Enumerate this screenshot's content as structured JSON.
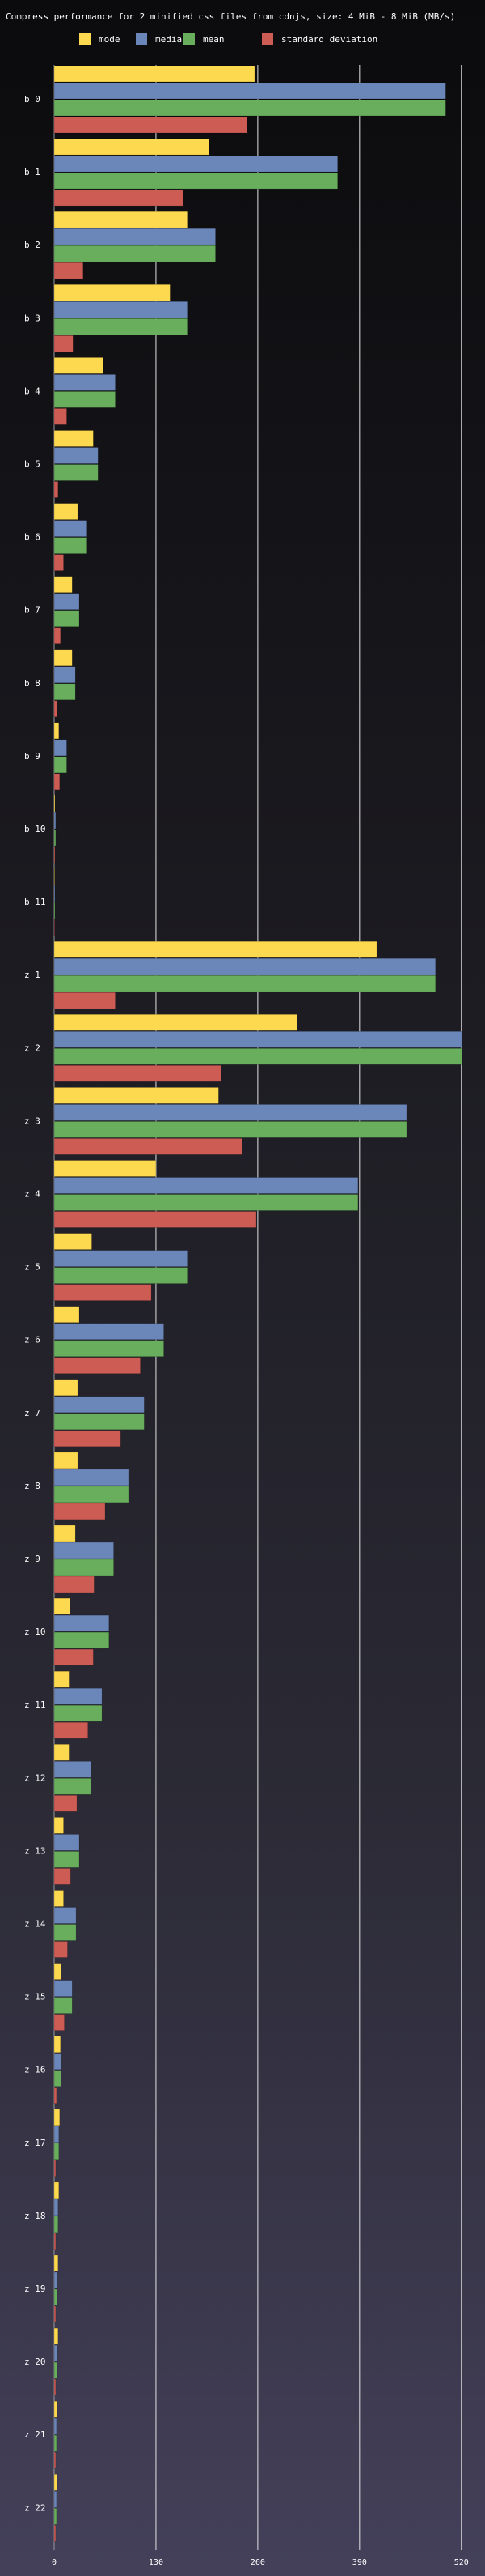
{
  "chart_data": {
    "type": "bar",
    "orientation": "horizontal",
    "title": "Compress performance for 2 minified css files from cdnjs, size: 4 MiB - 8 MiB (MB/s)",
    "xlabel": "",
    "ylabel": "",
    "xlim": [
      0,
      525
    ],
    "x_ticks": [
      "0",
      "130",
      "260",
      "390",
      "520"
    ],
    "grid": true,
    "legend_position": "top",
    "categories": [
      "b 0",
      "b 1",
      "b 2",
      "b 3",
      "b 4",
      "b 5",
      "b 6",
      "b 7",
      "b 8",
      "b 9",
      "b 10",
      "b 11",
      "z 1",
      "z 2",
      "z 3",
      "z 4",
      "z 5",
      "z 6",
      "z 7",
      "z 8",
      "z 9",
      "z 10",
      "z 11",
      "z 12",
      "z 13",
      "z 14",
      "z 15",
      "z 16",
      "z 17",
      "z 18",
      "z 19",
      "z 20",
      "z 21",
      "z 22"
    ],
    "series": [
      {
        "name": "mode",
        "color": "#fdd94f",
        "values": [
          256,
          198,
          170,
          148,
          63,
          50,
          30,
          23,
          23,
          6,
          1,
          0.5,
          412,
          310,
          210,
          130,
          48,
          32,
          30,
          30,
          27,
          20,
          19,
          19,
          12,
          12,
          9,
          8,
          7,
          6,
          5,
          5,
          4,
          4
        ]
      },
      {
        "name": "median",
        "color": "#6b86b8",
        "values": [
          500,
          362,
          206,
          170,
          78,
          56,
          42,
          32,
          27,
          16,
          2,
          1,
          487,
          521,
          450,
          388,
          170,
          140,
          115,
          95,
          76,
          70,
          61,
          47,
          32,
          28,
          23,
          9,
          6,
          5,
          4,
          4,
          3,
          3
        ]
      },
      {
        "name": "mean",
        "color": "#68ae5d",
        "values": [
          500,
          362,
          206,
          170,
          78,
          56,
          42,
          32,
          27,
          16,
          2,
          1,
          487,
          521,
          450,
          388,
          170,
          140,
          115,
          95,
          76,
          70,
          61,
          47,
          32,
          28,
          23,
          9,
          6,
          5,
          4,
          4,
          3,
          3
        ]
      },
      {
        "name": "standard deviation",
        "color": "#cd5c55",
        "values": [
          246,
          165,
          37,
          24,
          16,
          5,
          12,
          8,
          4,
          7,
          1,
          0.5,
          78,
          213,
          240,
          258,
          124,
          110,
          85,
          65,
          51,
          50,
          43,
          29,
          21,
          17,
          13,
          3,
          2,
          2,
          2,
          2,
          2,
          2
        ]
      }
    ]
  }
}
